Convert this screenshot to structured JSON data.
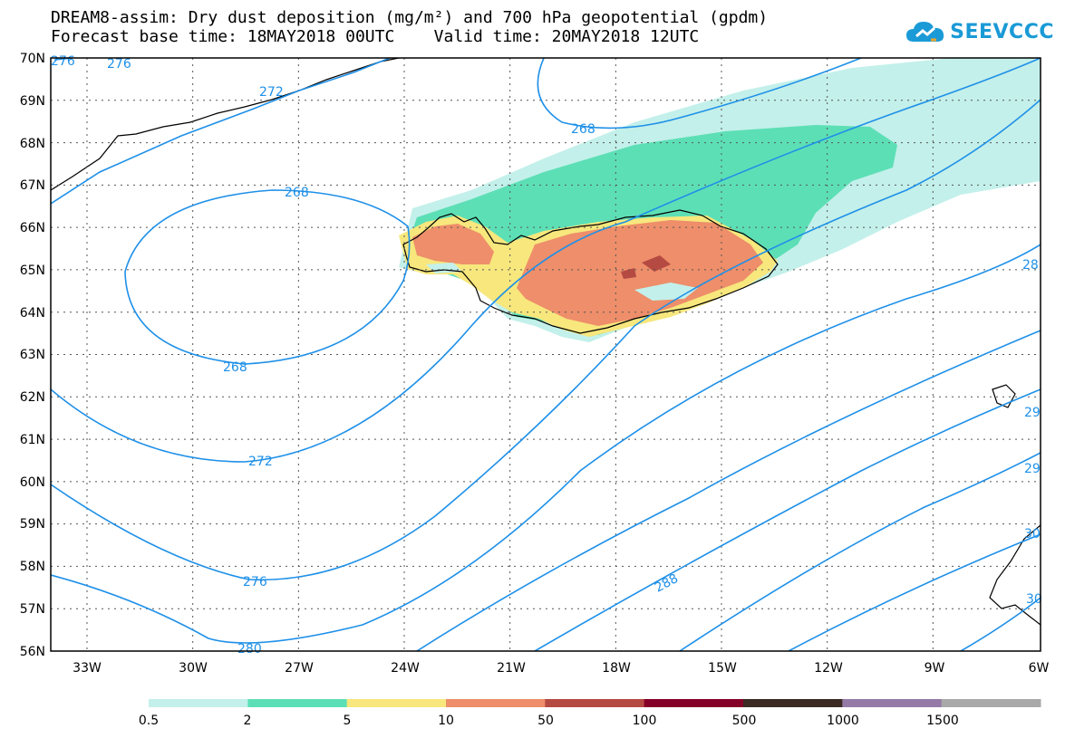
{
  "title": {
    "line1": "DREAM8-assim: Dry dust deposition (mg/m²) and 700 hPa geopotential (gpdm)",
    "line2": "Forecast base time: 18MAY2018 00UTC    Valid time: 20MAY2018 12UTC"
  },
  "logo": {
    "text": "SEEVCCC",
    "icon": "cloud-icon"
  },
  "axes": {
    "lat_labels": [
      "70N",
      "69N",
      "68N",
      "67N",
      "66N",
      "65N",
      "64N",
      "63N",
      "62N",
      "61N",
      "60N",
      "59N",
      "58N",
      "57N",
      "56N"
    ],
    "lon_labels": [
      "33W",
      "30W",
      "27W",
      "24W",
      "21W",
      "18W",
      "15W",
      "12W",
      "9W",
      "6W"
    ]
  },
  "contours": {
    "color": "#1e90e8",
    "labels": [
      "276",
      "276",
      "272",
      "268",
      "268",
      "268",
      "272",
      "276",
      "280",
      "288",
      "28",
      "29",
      "29",
      "30",
      "30"
    ]
  },
  "colorbar": {
    "colors": [
      "#c3f0ea",
      "#5ddfb6",
      "#f7e77d",
      "#ee8e6a",
      "#b54a42",
      "#850028",
      "#3b2b22",
      "#957aa8",
      "#a9a9a9"
    ],
    "labels": [
      "0.5",
      "2",
      "5",
      "10",
      "50",
      "100",
      "500",
      "1000",
      "1500"
    ]
  }
}
